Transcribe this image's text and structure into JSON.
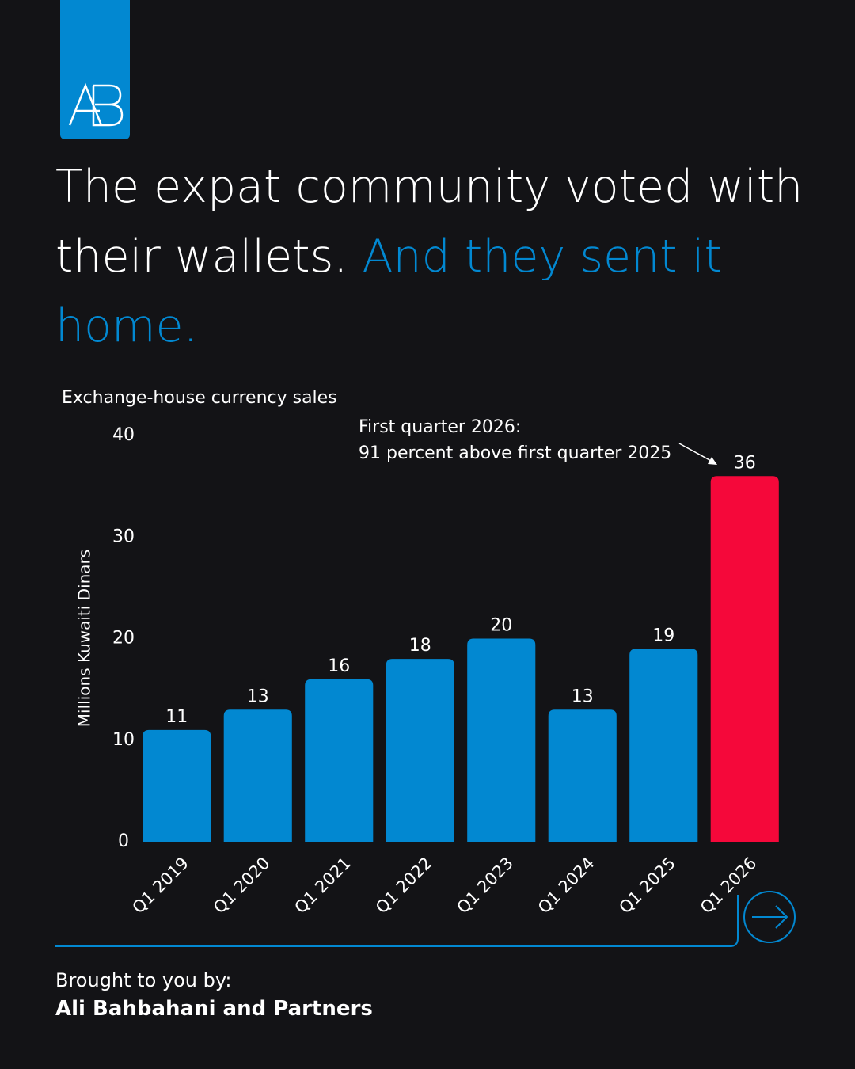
{
  "headline": {
    "white": "The expat community voted with their wallets.",
    "blue": "And they sent it home."
  },
  "chart_data": {
    "type": "bar",
    "title": "Exchange-house currency sales",
    "y_label": "Millions Kuwaiti Dinars",
    "annotation": [
      "First quarter 2026:",
      "91 percent above first quarter 2025"
    ],
    "categories": [
      "Q1 2019",
      "Q1 2020",
      "Q1 2021",
      "Q1 2022",
      "Q1 2023",
      "Q1 2024",
      "Q1 2025",
      "Q1 2026"
    ],
    "values": [
      11,
      13,
      16,
      18,
      20,
      13,
      19,
      36
    ],
    "colors": [
      "#0288d1",
      "#0288d1",
      "#0288d1",
      "#0288d1",
      "#0288d1",
      "#0288d1",
      "#0288d1",
      "#f5083a"
    ],
    "ylim": [
      0,
      40
    ],
    "yticks": [
      0,
      10,
      20,
      30,
      40
    ],
    "grid": false
  },
  "footer": {
    "line1": "Brought to you by:",
    "line2": "Ali Bahbahani and Partners"
  }
}
